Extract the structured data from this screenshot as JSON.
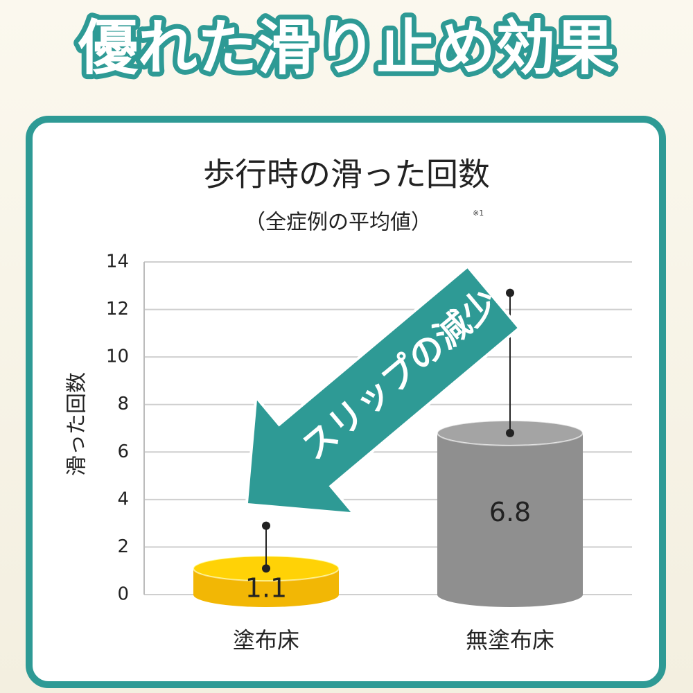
{
  "header": {
    "title": "優れた滑り止め効果"
  },
  "chart_data": {
    "type": "bar",
    "title": "歩行時の滑った回数",
    "subtitle": "（全症例の平均値）",
    "note": "※1",
    "y_label": "滑った回数",
    "annotation": "スリップの減少",
    "categories": [
      "塗布床",
      "無塗布床"
    ],
    "values": [
      1.1,
      6.8
    ],
    "errors": [
      1.8,
      5.9
    ],
    "colors": [
      "#f2b705",
      "#8f8f8f"
    ],
    "ylim": [
      0,
      14
    ],
    "yticks": [
      0,
      2,
      4,
      6,
      8,
      10,
      12,
      14
    ],
    "grid": true
  }
}
